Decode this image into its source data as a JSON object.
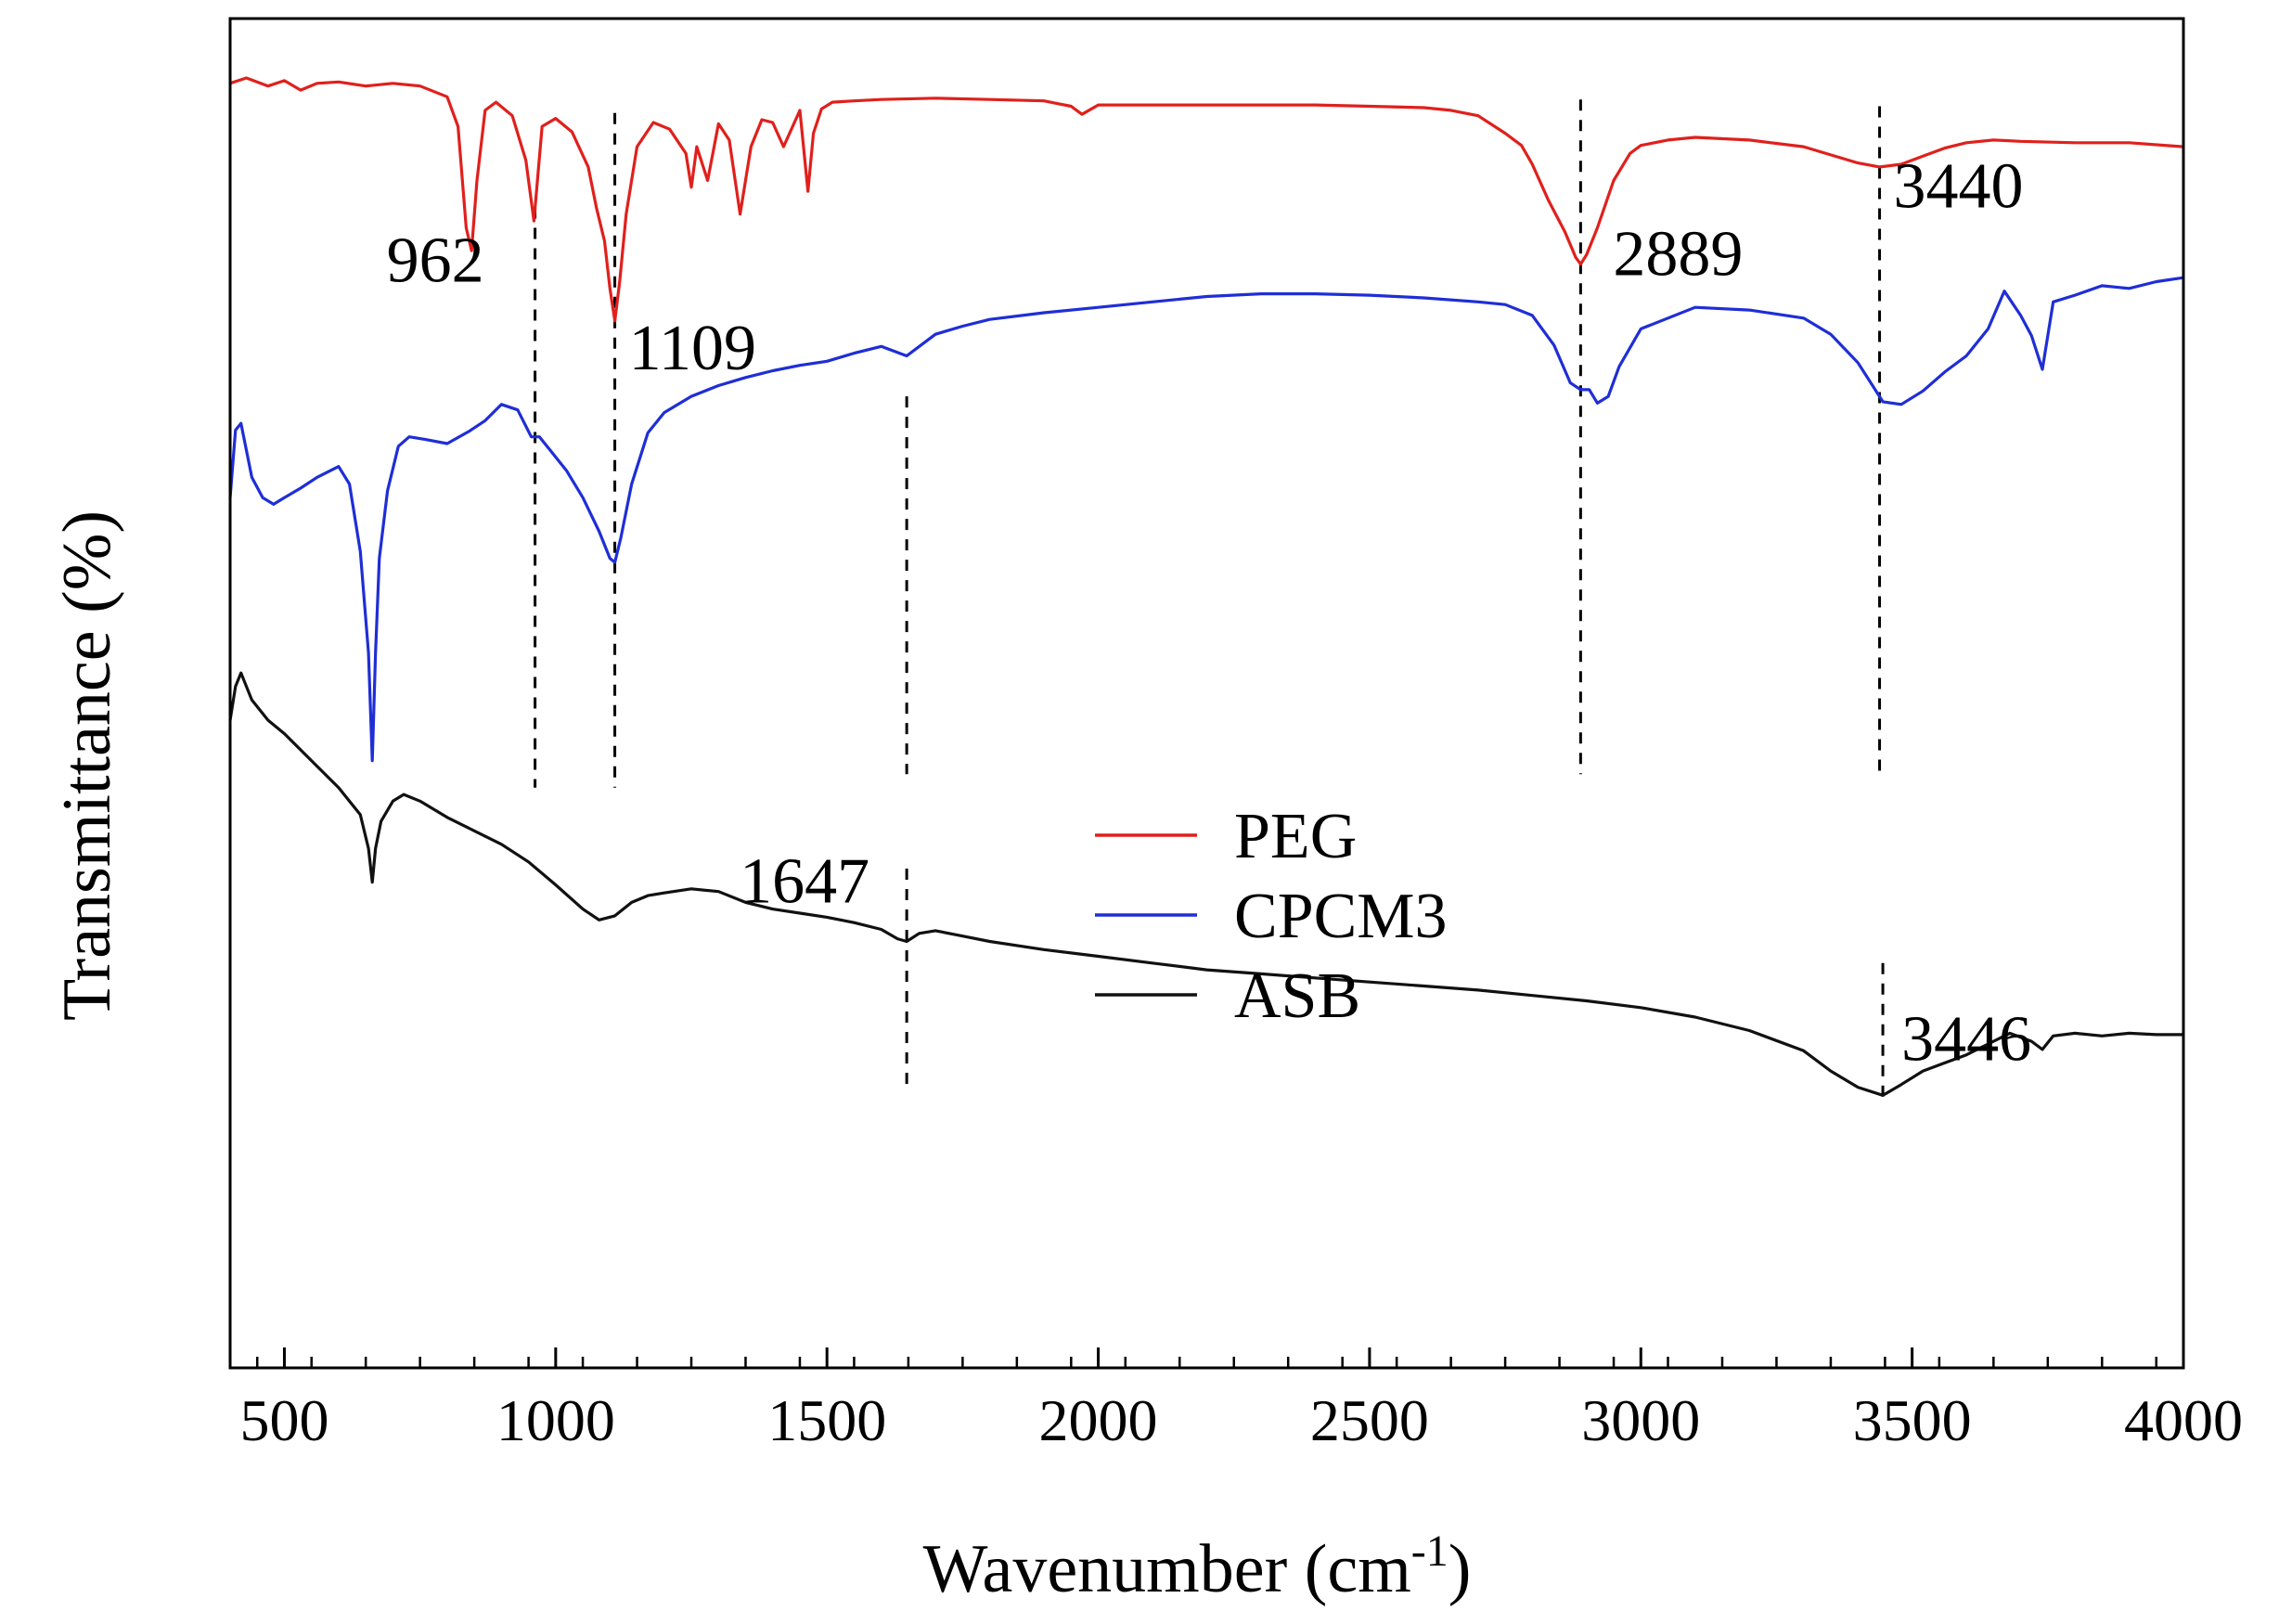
{
  "chart_data": {
    "type": "line",
    "title": "",
    "xlabel": "Wavenumber (cm",
    "xlabel_sup": "-1",
    "xlabel_tail": ")",
    "ylabel": "Transmittance (%)",
    "xlim": [
      400,
      4000
    ],
    "ylim": [
      0,
      100
    ],
    "x_ticks": [
      500,
      1000,
      1500,
      2000,
      2500,
      3000,
      3500,
      4000
    ],
    "x_tick_labels": [
      "500",
      "1000",
      "1500",
      "2000",
      "2500",
      "3000",
      "3500",
      "4000"
    ],
    "legend_position": "center",
    "grid": false,
    "series": [
      {
        "name": "PEG",
        "color": "#e0201c",
        "x": [
          400,
          430,
          470,
          500,
          530,
          560,
          600,
          650,
          700,
          750,
          800,
          820,
          835,
          845,
          855,
          870,
          890,
          920,
          945,
          960,
          975,
          1000,
          1030,
          1060,
          1075,
          1090,
          1100,
          1109,
          1118,
          1130,
          1150,
          1180,
          1210,
          1240,
          1250,
          1260,
          1280,
          1300,
          1320,
          1340,
          1360,
          1380,
          1400,
          1420,
          1450,
          1465,
          1475,
          1490,
          1510,
          1550,
          1600,
          1700,
          1800,
          1900,
          1950,
          1970,
          2000,
          2100,
          2200,
          2300,
          2400,
          2500,
          2600,
          2650,
          2700,
          2750,
          2780,
          2800,
          2830,
          2860,
          2880,
          2889,
          2900,
          2920,
          2950,
          2980,
          3000,
          3050,
          3100,
          3200,
          3300,
          3350,
          3400,
          3440,
          3480,
          3520,
          3560,
          3600,
          3650,
          3700,
          3800,
          3900,
          4000
        ],
        "y": [
          95.2,
          95.6,
          95.0,
          95.4,
          94.7,
          95.2,
          95.3,
          95.0,
          95.2,
          95.0,
          94.2,
          92.0,
          84.5,
          82.8,
          88.0,
          93.2,
          93.8,
          92.8,
          89.5,
          85.0,
          92.0,
          92.6,
          91.6,
          89.0,
          86.0,
          83.5,
          80.0,
          77.6,
          80.5,
          85.5,
          90.5,
          92.3,
          91.8,
          90.0,
          87.5,
          90.5,
          88.0,
          92.2,
          91.0,
          85.5,
          90.5,
          92.5,
          92.3,
          90.5,
          93.2,
          87.2,
          91.5,
          93.3,
          93.8,
          93.9,
          94.0,
          94.1,
          94.0,
          93.9,
          93.5,
          92.9,
          93.6,
          93.6,
          93.6,
          93.6,
          93.6,
          93.5,
          93.4,
          93.2,
          92.8,
          91.5,
          90.6,
          89.2,
          86.5,
          84.2,
          82.3,
          81.8,
          82.5,
          84.5,
          88.0,
          90.0,
          90.6,
          91.0,
          91.2,
          91.0,
          90.5,
          89.9,
          89.3,
          89.0,
          89.2,
          89.8,
          90.4,
          90.8,
          91.0,
          90.9,
          90.8,
          90.8,
          90.5
        ]
      },
      {
        "name": "CPCM3",
        "color": "#1f2ed6",
        "x": [
          400,
          410,
          420,
          440,
          460,
          480,
          500,
          530,
          560,
          600,
          620,
          640,
          655,
          662,
          668,
          675,
          690,
          710,
          730,
          760,
          800,
          840,
          870,
          900,
          930,
          955,
          970,
          990,
          1020,
          1050,
          1080,
          1100,
          1109,
          1120,
          1140,
          1170,
          1200,
          1250,
          1300,
          1350,
          1400,
          1450,
          1500,
          1550,
          1600,
          1647,
          1700,
          1750,
          1800,
          1900,
          2000,
          2100,
          2200,
          2300,
          2400,
          2500,
          2600,
          2700,
          2750,
          2800,
          2840,
          2870,
          2889,
          2905,
          2920,
          2940,
          2960,
          3000,
          3100,
          3200,
          3300,
          3350,
          3400,
          3446,
          3480,
          3520,
          3560,
          3600,
          3640,
          3670,
          3700,
          3720,
          3740,
          3760,
          3800,
          3850,
          3900,
          3950,
          4000
        ],
        "y": [
          64.5,
          69.5,
          70.0,
          66.0,
          64.5,
          64.0,
          64.5,
          65.2,
          66.0,
          66.8,
          65.5,
          60.5,
          53.0,
          45.0,
          53.0,
          60.0,
          65.0,
          68.3,
          69.0,
          68.8,
          68.5,
          69.4,
          70.2,
          71.4,
          71.0,
          69.0,
          69.0,
          68.0,
          66.5,
          64.5,
          62.0,
          60.0,
          59.7,
          61.5,
          65.5,
          69.3,
          70.8,
          72.0,
          72.8,
          73.4,
          73.9,
          74.3,
          74.6,
          75.2,
          75.7,
          75.0,
          76.6,
          77.2,
          77.7,
          78.2,
          78.6,
          79.0,
          79.4,
          79.6,
          79.6,
          79.5,
          79.3,
          79.0,
          78.8,
          78.0,
          75.8,
          73.0,
          72.5,
          72.5,
          71.5,
          72.0,
          74.2,
          77.0,
          78.6,
          78.4,
          77.8,
          76.6,
          74.5,
          71.6,
          71.4,
          72.4,
          73.8,
          75.0,
          77.0,
          79.8,
          78.0,
          76.5,
          74.0,
          79.0,
          79.5,
          80.2,
          80.0,
          80.5,
          80.8
        ]
      },
      {
        "name": "ASB",
        "color": "#111111",
        "x": [
          400,
          410,
          420,
          440,
          470,
          500,
          550,
          600,
          640,
          655,
          662,
          668,
          678,
          700,
          720,
          750,
          800,
          850,
          900,
          950,
          1000,
          1050,
          1080,
          1109,
          1140,
          1170,
          1200,
          1250,
          1300,
          1350,
          1400,
          1450,
          1500,
          1550,
          1600,
          1630,
          1647,
          1670,
          1700,
          1750,
          1800,
          1900,
          2000,
          2100,
          2200,
          2300,
          2400,
          2500,
          2600,
          2700,
          2800,
          2900,
          3000,
          3100,
          3200,
          3300,
          3350,
          3400,
          3446,
          3480,
          3520,
          3560,
          3600,
          3640,
          3680,
          3720,
          3740,
          3760,
          3800,
          3850,
          3900,
          3950,
          4000
        ],
        "y": [
          48.0,
          50.5,
          51.5,
          49.5,
          48.0,
          47.0,
          45.0,
          43.0,
          41.0,
          38.5,
          36.0,
          38.5,
          40.5,
          42.0,
          42.5,
          42.0,
          40.8,
          39.8,
          38.8,
          37.5,
          35.8,
          34.0,
          33.2,
          33.5,
          34.5,
          35.0,
          35.2,
          35.5,
          35.3,
          34.5,
          34.0,
          33.7,
          33.4,
          33.0,
          32.5,
          31.8,
          31.6,
          32.2,
          32.4,
          32.0,
          31.6,
          31.0,
          30.5,
          30.0,
          29.5,
          29.2,
          28.9,
          28.6,
          28.3,
          28.0,
          27.6,
          27.2,
          26.7,
          26.0,
          25.0,
          23.5,
          22.0,
          20.8,
          20.2,
          21.0,
          22.0,
          22.6,
          23.2,
          24.0,
          24.8,
          24.2,
          23.6,
          24.6,
          24.8,
          24.6,
          24.8,
          24.7,
          24.7
        ]
      }
    ],
    "reference_lines": [
      {
        "x": 962,
        "y_range": [
          43,
          86
        ]
      },
      {
        "x": 1109,
        "y_range": [
          43,
          93
        ]
      },
      {
        "x": 1647,
        "y_range": [
          44,
          72
        ]
      },
      {
        "x": 1647,
        "y_range": [
          20.5,
          37
        ]
      },
      {
        "x": 2889,
        "y_range": [
          44,
          94
        ]
      },
      {
        "x": 3440,
        "y_range": [
          44,
          93.5
        ]
      },
      {
        "x": 3446,
        "y_range": [
          20,
          30
        ]
      }
    ],
    "annotations": [
      {
        "text": "962",
        "x": 962,
        "y": 80.5
      },
      {
        "text": "1109",
        "x": 1109,
        "y": 74.0
      },
      {
        "text": "2889",
        "x": 2889,
        "y": 81.0
      },
      {
        "text": "3440",
        "x": 3440,
        "y": 86.0
      },
      {
        "text": "1647",
        "x": 1647,
        "y": 34.5
      },
      {
        "text": "3446",
        "x": 3446,
        "y": 22.8
      }
    ]
  }
}
